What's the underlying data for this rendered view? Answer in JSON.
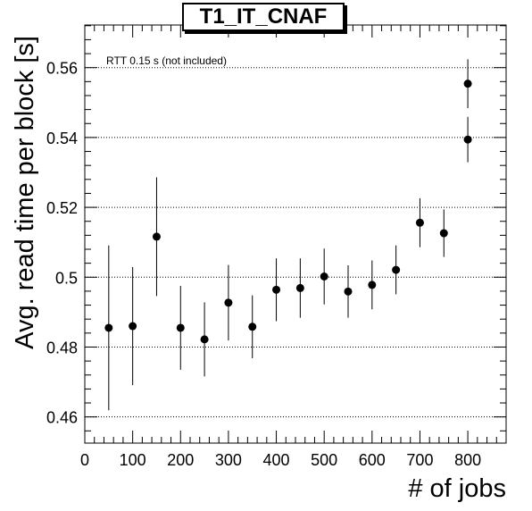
{
  "chart_data": {
    "type": "scatter",
    "title": "T1_IT_CNAF",
    "xlabel": "# of jobs",
    "ylabel": "Avg. read time per block [s]",
    "annotation": "RTT 0.15 s (not included)",
    "xlim": [
      0,
      880
    ],
    "ylim": [
      0.4525,
      0.5722
    ],
    "x_ticks": [
      0,
      100,
      200,
      300,
      400,
      500,
      600,
      700,
      800
    ],
    "x_tick_labels": [
      "0",
      "100",
      "200",
      "300",
      "400",
      "500",
      "600",
      "700",
      "800"
    ],
    "y_ticks": [
      0.46,
      0.48,
      0.5,
      0.52,
      0.54,
      0.56
    ],
    "y_tick_labels": [
      "0.46",
      "0.48",
      "0.5",
      "0.52",
      "0.54",
      "0.56"
    ],
    "grid_y": true,
    "grid_x": false,
    "series": [
      {
        "x": [
          50,
          100,
          150,
          200,
          250,
          300,
          350,
          400,
          450,
          500,
          550,
          600,
          650,
          700,
          750,
          800,
          800
        ],
        "y": [
          0.4855,
          0.486,
          0.5116,
          0.4855,
          0.4822,
          0.4927,
          0.4858,
          0.4964,
          0.4969,
          0.5002,
          0.4959,
          0.4978,
          0.5021,
          0.5156,
          0.5126,
          0.5554,
          0.5394
        ],
        "err": [
          0.0236,
          0.0169,
          0.017,
          0.012,
          0.0106,
          0.0108,
          0.009,
          0.009,
          0.0085,
          0.008,
          0.0075,
          0.007,
          0.007,
          0.007,
          0.0068,
          0.007,
          0.0065
        ]
      }
    ]
  }
}
